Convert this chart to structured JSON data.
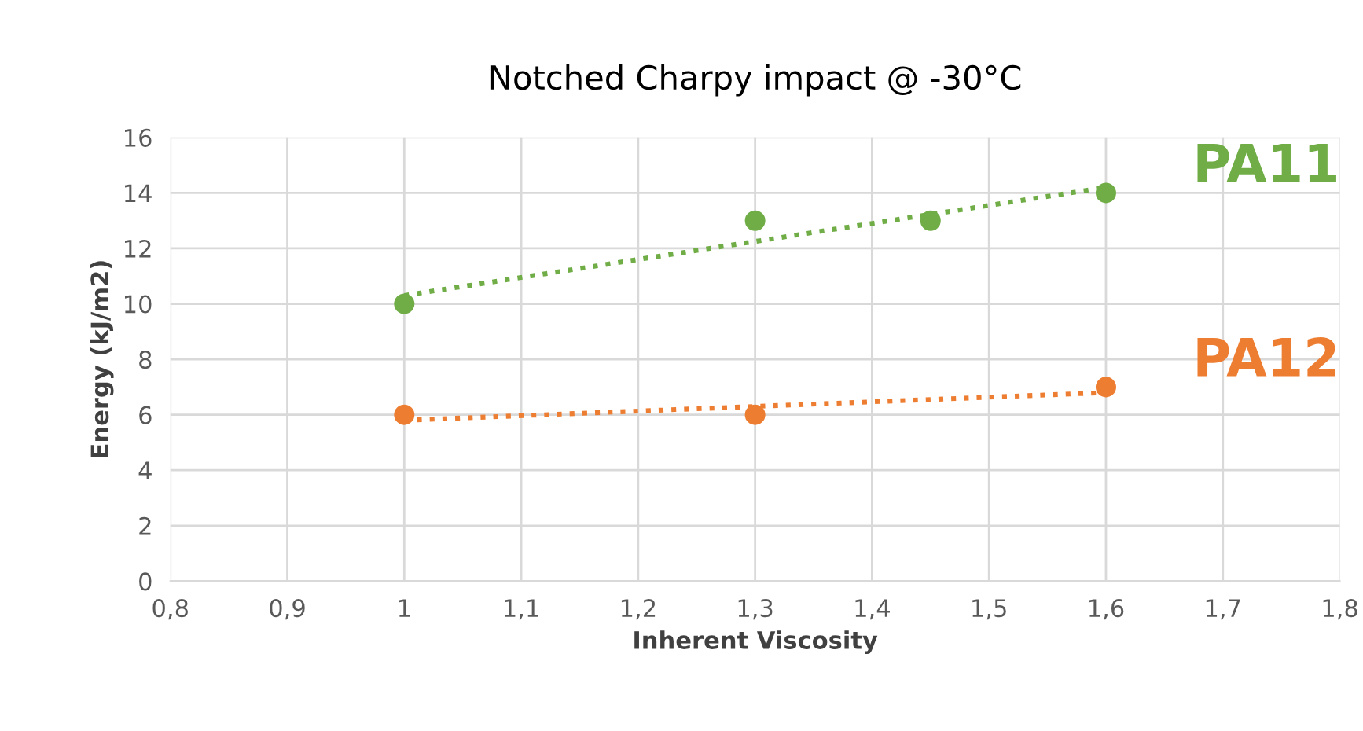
{
  "chart_data": {
    "type": "scatter",
    "title": "Notched Charpy impact @ -30°C",
    "xlabel": "Inherent Viscosity",
    "ylabel": "Energy (kJ/m2)",
    "series": [
      {
        "name": "PA11",
        "color": "#70ad47",
        "marker": "circle",
        "x": [
          1,
          1.3,
          1.45,
          1.6
        ],
        "values": [
          10,
          13,
          13,
          14
        ]
      },
      {
        "type": "line",
        "color": "#70ad47",
        "line_style": "dotted",
        "marker": "none",
        "x": [
          1,
          1.6
        ],
        "values": [
          10.3,
          14.2
        ]
      },
      {
        "name": "PA12",
        "color": "#ed7d31",
        "marker": "circle",
        "x": [
          1,
          1.3,
          1.6
        ],
        "values": [
          6,
          6,
          7
        ]
      },
      {
        "type": "line",
        "color": "#ed7d31",
        "line_style": "dotted",
        "marker": "none",
        "x": [
          1,
          1.6
        ],
        "values": [
          5.8,
          6.8
        ]
      }
    ],
    "grid": true,
    "legend": false,
    "xlim": [
      0.8,
      1.8
    ],
    "xticks": [
      {
        "value": 0.8,
        "label": "0,8"
      },
      {
        "value": 0.9,
        "label": "0,9"
      },
      1,
      {
        "value": 1.1,
        "label": "1,1"
      },
      {
        "value": 1.2,
        "label": "1,2"
      },
      {
        "value": 1.3,
        "label": "1,3"
      },
      {
        "value": 1.4,
        "label": "1,4"
      },
      {
        "value": 1.5,
        "label": "1,5"
      },
      {
        "value": 1.6,
        "label": "1,6"
      },
      {
        "value": 1.7,
        "label": "1,7"
      },
      {
        "value": 1.8,
        "label": "1,8"
      }
    ],
    "ylim": [
      0,
      16
    ],
    "yticks": [
      0,
      2,
      4,
      6,
      8,
      10,
      12,
      14,
      16
    ]
  }
}
